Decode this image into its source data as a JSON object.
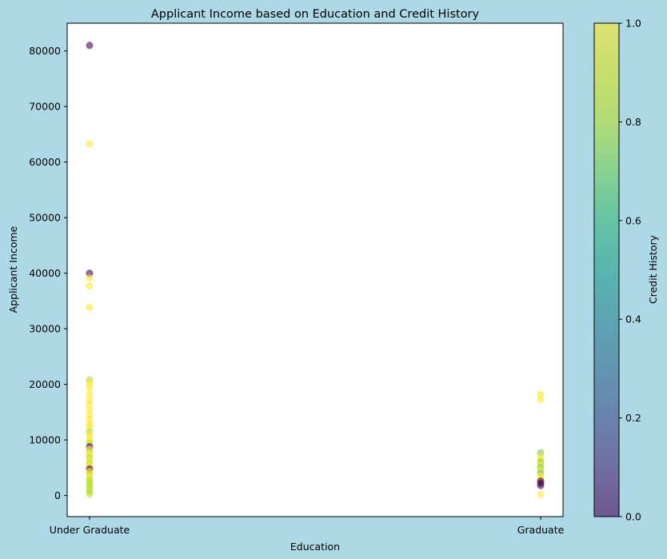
{
  "chart_data": {
    "type": "scatter",
    "title": "Applicant Income based on Education and Credit History",
    "xlabel": "Education",
    "ylabel": "Applicant Income",
    "categories": [
      "Under Graduate",
      "Graduate"
    ],
    "ylim": [
      -3800,
      85000
    ],
    "yticks": [
      0,
      10000,
      20000,
      30000,
      40000,
      50000,
      60000,
      70000,
      80000
    ],
    "colorbar": {
      "label": "Credit History",
      "range": [
        0,
        1
      ],
      "ticks": [
        "0.0",
        "0.2",
        "0.4",
        "0.6",
        "0.8",
        "1.0"
      ],
      "colormap": "viridis"
    },
    "series": [
      {
        "category": "Under Graduate",
        "points": [
          {
            "y": 81000,
            "c": 0
          },
          {
            "y": 63300,
            "c": 1
          },
          {
            "y": 40000,
            "c": 0
          },
          {
            "y": 39200,
            "c": 1
          },
          {
            "y": 37700,
            "c": 1
          },
          {
            "y": 33850,
            "c": 1
          },
          {
            "y": 20800,
            "c": 0.8
          },
          {
            "y": 20200,
            "c": 1
          },
          {
            "y": 19400,
            "c": 1
          },
          {
            "y": 18200,
            "c": 1
          },
          {
            "y": 17200,
            "c": 1
          },
          {
            "y": 16400,
            "c": 1
          },
          {
            "y": 15400,
            "c": 1
          },
          {
            "y": 14600,
            "c": 1
          },
          {
            "y": 13700,
            "c": 1
          },
          {
            "y": 12900,
            "c": 1
          },
          {
            "y": 12300,
            "c": 1
          },
          {
            "y": 11500,
            "c": 0.8
          },
          {
            "y": 10800,
            "c": 1
          },
          {
            "y": 10100,
            "c": 1
          },
          {
            "y": 9500,
            "c": 0.8
          },
          {
            "y": 8800,
            "c": 0
          },
          {
            "y": 8300,
            "c": 1
          },
          {
            "y": 7800,
            "c": 0.8
          },
          {
            "y": 7300,
            "c": 1
          },
          {
            "y": 6800,
            "c": 0.8
          },
          {
            "y": 6300,
            "c": 1
          },
          {
            "y": 5800,
            "c": 0.8
          },
          {
            "y": 5300,
            "c": 1
          },
          {
            "y": 4800,
            "c": 0
          },
          {
            "y": 4300,
            "c": 1
          },
          {
            "y": 3800,
            "c": 0.8
          },
          {
            "y": 3300,
            "c": 1
          },
          {
            "y": 2800,
            "c": 0.8
          },
          {
            "y": 2300,
            "c": 0.8
          },
          {
            "y": 1800,
            "c": 0.8
          },
          {
            "y": 1300,
            "c": 0.8
          },
          {
            "y": 800,
            "c": 0.8
          },
          {
            "y": 300,
            "c": 0.8
          }
        ]
      },
      {
        "category": "Graduate",
        "points": [
          {
            "y": 18200,
            "c": 1
          },
          {
            "y": 17300,
            "c": 1
          },
          {
            "y": 7700,
            "c": 0.7
          },
          {
            "y": 7000,
            "c": 1
          },
          {
            "y": 6500,
            "c": 1
          },
          {
            "y": 6000,
            "c": 0.7
          },
          {
            "y": 5500,
            "c": 1
          },
          {
            "y": 5000,
            "c": 0.7
          },
          {
            "y": 4500,
            "c": 1
          },
          {
            "y": 4000,
            "c": 0.7
          },
          {
            "y": 3500,
            "c": 1
          },
          {
            "y": 3000,
            "c": 1
          },
          {
            "y": 2600,
            "c": 0
          },
          {
            "y": 2200,
            "c": 0
          },
          {
            "y": 1800,
            "c": 0
          },
          {
            "y": 200,
            "c": 1
          }
        ]
      }
    ]
  }
}
